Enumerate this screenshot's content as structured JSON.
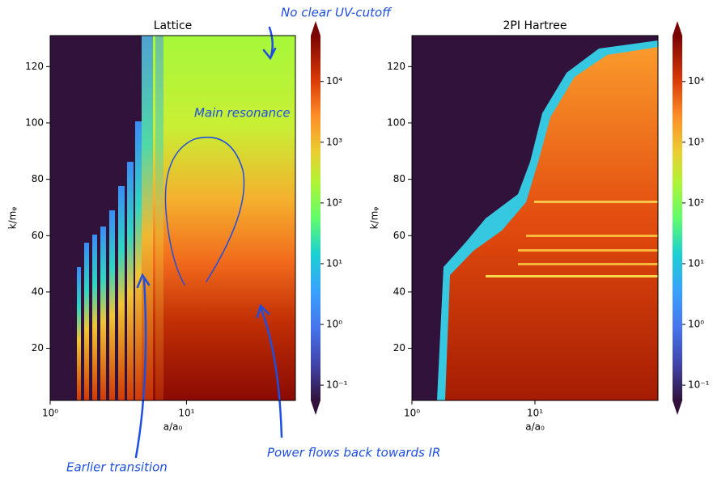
{
  "chart_data": [
    {
      "type": "heatmap",
      "title": "Lattice",
      "xlabel": "a/a₀",
      "ylabel": "k/mᵩ",
      "xscale": "log",
      "xlim": [
        1,
        63
      ],
      "ylim": [
        1.5,
        131
      ],
      "xticks": [
        {
          "value": 1,
          "label": "10⁰"
        },
        {
          "value": 10,
          "label": "10¹"
        }
      ],
      "yticks": [
        20,
        40,
        60,
        80,
        100,
        120
      ],
      "colorbar": {
        "scale": "log",
        "lim": [
          0.056,
          57000
        ],
        "ticks": [
          {
            "value": 0.1,
            "label": "10⁻¹"
          },
          {
            "value": 1,
            "label": "10⁰"
          },
          {
            "value": 10,
            "label": "10¹"
          },
          {
            "value": 100,
            "label": "10²"
          },
          {
            "value": 1000,
            "label": "10³"
          },
          {
            "value": 10000,
            "label": "10⁴"
          }
        ]
      },
      "annotations": [
        "No clear UV-cutoff",
        "Main resonance",
        "Earlier transition",
        "Power flows back towards IR"
      ]
    },
    {
      "type": "heatmap",
      "title": "2PI Hartree",
      "xlabel": "a/a₀",
      "ylabel": "k/mᵩ",
      "xscale": "log",
      "xlim": [
        1,
        100
      ],
      "ylim": [
        1.5,
        131
      ],
      "xticks": [
        {
          "value": 1,
          "label": "10⁰"
        },
        {
          "value": 10,
          "label": "10¹"
        }
      ],
      "yticks": [
        20,
        40,
        60,
        80,
        100,
        120
      ],
      "colorbar": {
        "scale": "log",
        "lim": [
          0.056,
          57000
        ],
        "ticks": [
          {
            "value": 0.1,
            "label": "10⁻¹"
          },
          {
            "value": 1,
            "label": "10⁰"
          },
          {
            "value": 10,
            "label": "10¹"
          },
          {
            "value": 100,
            "label": "10²"
          },
          {
            "value": 1000,
            "label": "10³"
          },
          {
            "value": 10000,
            "label": "10⁴"
          }
        ]
      }
    }
  ]
}
